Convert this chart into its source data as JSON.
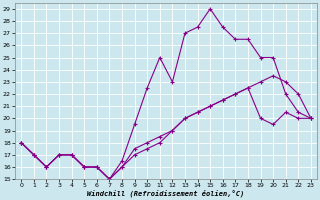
{
  "xlabel": "Windchill (Refroidissement éolien,°C)",
  "ylabel": "",
  "background_color": "#cce8ee",
  "line_color": "#880088",
  "xlim": [
    -0.5,
    23.5
  ],
  "ylim": [
    15,
    29.5
  ],
  "yticks": [
    15,
    16,
    17,
    18,
    19,
    20,
    21,
    22,
    23,
    24,
    25,
    26,
    27,
    28,
    29
  ],
  "xticks": [
    0,
    1,
    2,
    3,
    4,
    5,
    6,
    7,
    8,
    9,
    10,
    11,
    12,
    13,
    14,
    15,
    16,
    17,
    18,
    19,
    20,
    21,
    22,
    23
  ],
  "s1_x": [
    0,
    1,
    2,
    3,
    4,
    5,
    6,
    7,
    8,
    9,
    10,
    11,
    12,
    13,
    14,
    15,
    16,
    17,
    18,
    19,
    20,
    21,
    22,
    23
  ],
  "s1_y": [
    18,
    17,
    16,
    17,
    17,
    16,
    16,
    15,
    16.5,
    19.5,
    22.5,
    25,
    23,
    27,
    27.5,
    29,
    27.5,
    26.5,
    26.5,
    25,
    25,
    22,
    20.5,
    20
  ],
  "s2_x": [
    0,
    1,
    2,
    3,
    4,
    5,
    6,
    7,
    8,
    9,
    10,
    11,
    12,
    13,
    14,
    15,
    16,
    17,
    18,
    19,
    20,
    21,
    22,
    23
  ],
  "s2_y": [
    18,
    17,
    16,
    17,
    17,
    16,
    16,
    15,
    16,
    17,
    17.5,
    18,
    19,
    20,
    20.5,
    21,
    21.5,
    22,
    22.5,
    23,
    23.5,
    23,
    22,
    20
  ],
  "s3_x": [
    0,
    1,
    2,
    3,
    4,
    5,
    6,
    7,
    8,
    9,
    10,
    11,
    12,
    13,
    14,
    15,
    16,
    17,
    18,
    19,
    20,
    21,
    22,
    23
  ],
  "s3_y": [
    18,
    17,
    16,
    17,
    17,
    16,
    16,
    15,
    16,
    17.5,
    18,
    18.5,
    19,
    20,
    20.5,
    21,
    21.5,
    22,
    22.5,
    20,
    19.5,
    20.5,
    20,
    20
  ]
}
